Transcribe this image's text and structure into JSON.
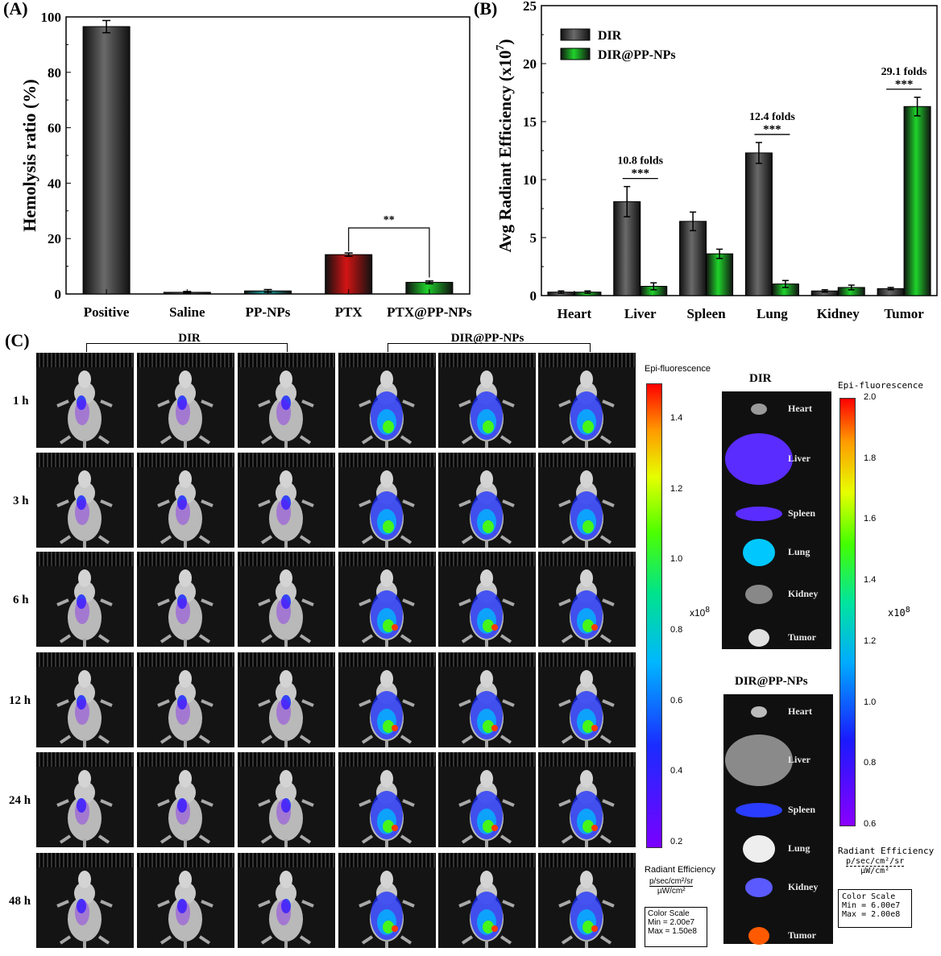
{
  "panels": {
    "a": "(A)",
    "b": "(B)",
    "c": "(C)"
  },
  "colors": {
    "gray": "#6a6a6a",
    "green": "#1fd32b",
    "red": "#d41414",
    "teal": "#1aa7a7"
  },
  "chart_data": [
    {
      "type": "bar",
      "ylabel": "Hemolysis ratio (%)",
      "xlabel": "",
      "ylim": [
        0,
        100
      ],
      "yticks": [
        "0",
        "20",
        "40",
        "60",
        "80",
        "100"
      ],
      "categories": [
        "Positive",
        "Saline",
        "PP-NPs",
        "PTX",
        "PTX@PP-NPs"
      ],
      "values": [
        96.5,
        0.6,
        1.1,
        14.2,
        4.2
      ],
      "errors": [
        2.2,
        0.3,
        0.5,
        0.6,
        0.5
      ],
      "bar_colors": [
        "gray",
        "gray",
        "teal",
        "red",
        "green"
      ],
      "annotations": [
        {
          "text": "**",
          "from": 3,
          "to": 4
        }
      ]
    },
    {
      "type": "bar",
      "ylabel": "Avg Radiant Efficiency (x10",
      "ylabel_exp": "7",
      "ylabel_close": ")",
      "ylim": [
        0,
        25
      ],
      "yticks": [
        "0",
        "5",
        "10",
        "15",
        "20",
        "25"
      ],
      "categories": [
        "Heart",
        "Liver",
        "Spleen",
        "Lung",
        "Kidney",
        "Tumor"
      ],
      "legend_position": "top-left",
      "series": [
        {
          "name": "DIR",
          "color": "gray",
          "values": [
            0.3,
            8.1,
            6.4,
            12.3,
            0.4,
            0.6
          ],
          "errors": [
            0.1,
            1.3,
            0.8,
            0.9,
            0.1,
            0.1
          ]
        },
        {
          "name": "DIR@PP-NPs",
          "color": "green",
          "values": [
            0.3,
            0.8,
            3.6,
            1.0,
            0.7,
            16.3
          ],
          "errors": [
            0.1,
            0.3,
            0.4,
            0.3,
            0.2,
            0.8
          ]
        }
      ],
      "annotations": [
        {
          "category": 1,
          "folds": "10.8 folds",
          "stars": "***"
        },
        {
          "category": 3,
          "folds": "12.4 folds",
          "stars": "***"
        },
        {
          "category": 5,
          "folds": "29.1 folds",
          "stars": "***"
        }
      ]
    }
  ],
  "imaging": {
    "group_left": "DIR",
    "group_right": "DIR@PP-NPs",
    "timepoints": [
      "1 h",
      "3 h",
      "6 h",
      "12 h",
      "24 h",
      "48 h"
    ],
    "scale1": {
      "title": "Epi-fluorescence",
      "ticks": [
        "1.4",
        "1.2",
        "1.0",
        "0.8",
        "0.6",
        "0.4",
        "0.2"
      ],
      "multiplier": "x10",
      "multiplier_exp": "8",
      "unit_title": "Radiant Efficiency",
      "unit_num": "p/sec/cm²/sr",
      "unit_den": "µW/cm²",
      "box_title": "Color Scale",
      "box_min": "Min = 2.00e7",
      "box_max": "Max = 1.50e8"
    },
    "organs_dir_title": "DIR",
    "organs_np_title": "DIR@PP-NPs",
    "organs": [
      "Heart",
      "Liver",
      "Spleen",
      "Lung",
      "Kidney",
      "Tumor"
    ],
    "scale2": {
      "title": "Epi-fluorescence",
      "ticks": [
        "2.0",
        "1.8",
        "1.6",
        "1.4",
        "1.2",
        "1.0",
        "0.8",
        "0.6"
      ],
      "multiplier": "x10",
      "multiplier_exp": "8",
      "unit_title": "Radiant Efficiency",
      "unit_num": "p/sec/cm²/sr",
      "unit_den": "µW/cm²",
      "box_title": "Color Scale",
      "box_min": "Min = 6.00e7",
      "box_max": "Max = 2.00e8"
    }
  }
}
